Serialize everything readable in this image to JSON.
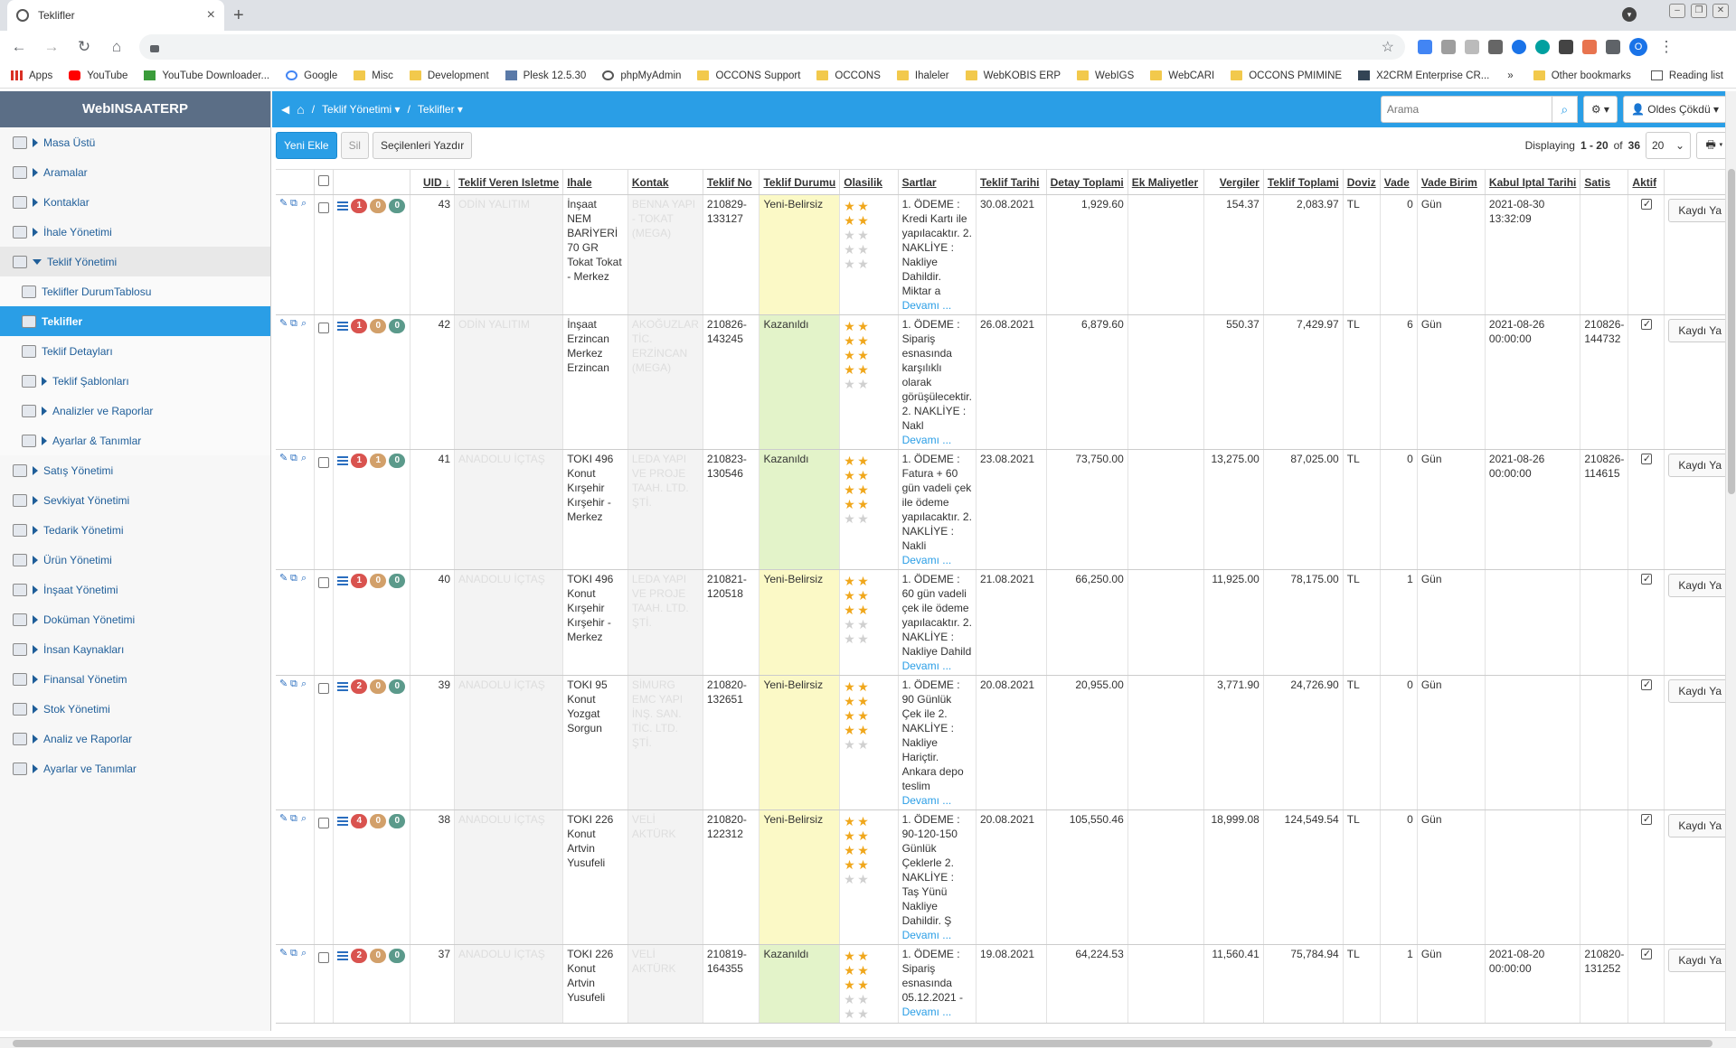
{
  "browser": {
    "tab_title": "Teklifler",
    "bookmarks": [
      "Apps",
      "YouTube",
      "YouTube Downloader...",
      "Google",
      "Misc",
      "Development",
      "Plesk 12.5.30",
      "phpMyAdmin",
      "OCCONS Support",
      "OCCONS",
      "Ihaleler",
      "WebKOBIS ERP",
      "WebIGS",
      "WebCARI",
      "OCCONS PMIMINE",
      "X2CRM Enterprise CR..."
    ],
    "more": "»",
    "other_bookmarks": "Other bookmarks",
    "reading_list": "Reading list",
    "profile_initial": "O"
  },
  "sidebar": {
    "brand": "WebINSAATERP",
    "items": [
      {
        "label": "Masa Üstü",
        "type": "top"
      },
      {
        "label": "Aramalar",
        "type": "top"
      },
      {
        "label": "Kontaklar",
        "type": "top"
      },
      {
        "label": "İhale Yönetimi",
        "type": "top"
      },
      {
        "label": "Teklif Yönetimi",
        "type": "open"
      },
      {
        "label": "Teklifler DurumTablosu",
        "type": "sub"
      },
      {
        "label": "Teklifler",
        "type": "active"
      },
      {
        "label": "Teklif Detayları",
        "type": "sub"
      },
      {
        "label": "Teklif Şablonları",
        "type": "sub2"
      },
      {
        "label": "Analizler ve Raporlar",
        "type": "sub2"
      },
      {
        "label": "Ayarlar & Tanımlar",
        "type": "sub2"
      },
      {
        "label": "Satış Yönetimi",
        "type": "top"
      },
      {
        "label": "Sevkiyat Yönetimi",
        "type": "top"
      },
      {
        "label": "Tedarik Yönetimi",
        "type": "top"
      },
      {
        "label": "Ürün Yönetimi",
        "type": "top"
      },
      {
        "label": "İnşaat Yönetimi",
        "type": "top"
      },
      {
        "label": "Doküman Yönetimi",
        "type": "top"
      },
      {
        "label": "İnsan Kaynakları",
        "type": "top"
      },
      {
        "label": "Finansal Yönetim",
        "type": "top"
      },
      {
        "label": "Stok Yönetimi",
        "type": "top"
      },
      {
        "label": "Analiz ve Raporlar",
        "type": "top"
      },
      {
        "label": "Ayarlar ve Tanımlar",
        "type": "top"
      }
    ]
  },
  "topbar": {
    "breadcrumb_sep": "/",
    "crumb1": "Teklif Yönetimi",
    "crumb2": "Teklifler",
    "search_placeholder": "Arama",
    "user": "Oldes Çökdü"
  },
  "actions": {
    "add": "Yeni Ekle",
    "delete": "Sil",
    "print_selected": "Seçilenleri Yazdır",
    "displaying_prefix": "Displaying",
    "range": "1 - 20",
    "of": "of",
    "total": "36",
    "page_size": "20"
  },
  "table": {
    "columns": [
      "UID",
      "Teklif Veren Isletme",
      "Ihale",
      "Kontak",
      "Teklif No",
      "Teklif Durumu",
      "Olasilik",
      "Sartlar",
      "Teklif Tarihi",
      "Detay Toplami",
      "Ek Maliyetler",
      "Vergiler",
      "Teklif Toplami",
      "Doviz",
      "Vade",
      "Vade Birim",
      "Kabul Iptal Tarihi",
      "Satis",
      "Aktif"
    ],
    "row_button": "Kaydı Ya",
    "more_link": "Devamı ...",
    "rows": [
      {
        "b1": "1",
        "b2": "0",
        "b3": "0",
        "uid": "43",
        "firma": "ODİN YALITIM",
        "ihale": "İnşaat NEM BARİYERİ 70 GR Tokat Tokat - Merkez",
        "kontak": "BENNA YAPI - TOKAT (MEGA)",
        "no": "210829-133127",
        "durum": "Yeni-Belirsiz",
        "durum_class": "yel",
        "stars": 2,
        "sartlar": "1. ÖDEME : Kredi Kartı ile yapılacaktır. 2. NAKLİYE : Nakliye Dahildir. Miktar a",
        "tarih": "30.08.2021",
        "detay": "1,929.60",
        "ek": "",
        "vergi": "154.37",
        "toplam": "2,083.97",
        "doviz": "TL",
        "vade": "0",
        "birim": "Gün",
        "kabul": "2021-08-30 13:32:09",
        "satis": "",
        "h": 112
      },
      {
        "b1": "1",
        "b2": "0",
        "b3": "0",
        "uid": "42",
        "firma": "ODİN YALITIM",
        "ihale": "İnşaat Erzincan Merkez Erzincan",
        "kontak": "AKOĞUZLAR TİC. ERZİNCAN (MEGA)",
        "no": "210826-143245",
        "durum": "Kazanıldı",
        "durum_class": "grn",
        "stars": 4,
        "sartlar": "1. ÖDEME : Sipariş esnasında karşılıklı olarak görüşülecektir. 2. NAKLİYE : Nakl",
        "tarih": "26.08.2021",
        "detay": "6,879.60",
        "ek": "",
        "vergi": "550.37",
        "toplam": "7,429.97",
        "doviz": "TL",
        "vade": "6",
        "birim": "Gün",
        "kabul": "2021-08-26 00:00:00",
        "satis": "210826-144732",
        "h": 125
      },
      {
        "b1": "1",
        "b2": "1",
        "b3": "0",
        "uid": "41",
        "firma": "ANADOLU İÇTAŞ",
        "ihale": "TOKI 496 Konut Kırşehir Kırşehir - Merkez",
        "kontak": "LEDA YAPI VE PROJE TAAH. LTD. ŞTİ.",
        "no": "210823-130546",
        "durum": "Kazanıldı",
        "durum_class": "grn",
        "stars": 4,
        "sartlar": "1. ÖDEME : Fatura + 60 gün vadeli çek ile ödeme yapılacaktır. 2. NAKLİYE : Nakli",
        "tarih": "23.08.2021",
        "detay": "73,750.00",
        "ek": "",
        "vergi": "13,275.00",
        "toplam": "87,025.00",
        "doviz": "TL",
        "vade": "0",
        "birim": "Gün",
        "kabul": "2021-08-26 00:00:00",
        "satis": "210826-114615",
        "h": 112
      },
      {
        "b1": "1",
        "b2": "0",
        "b3": "0",
        "uid": "40",
        "firma": "ANADOLU İÇTAŞ",
        "ihale": "TOKI 496 Konut Kırşehir Kırşehir - Merkez",
        "kontak": "LEDA YAPI VE PROJE TAAH. LTD. ŞTİ.",
        "no": "210821-120518",
        "durum": "Yeni-Belirsiz",
        "durum_class": "yel",
        "stars": 3,
        "sartlar": "1. ÖDEME : 60 gün vadeli çek ile ödeme yapılacaktır. 2. NAKLİYE : Nakliye Dahild",
        "tarih": "21.08.2021",
        "detay": "66,250.00",
        "ek": "",
        "vergi": "11,925.00",
        "toplam": "78,175.00",
        "doviz": "TL",
        "vade": "1",
        "birim": "Gün",
        "kabul": "",
        "satis": "",
        "h": 99
      },
      {
        "b1": "2",
        "b2": "0",
        "b3": "0",
        "uid": "39",
        "firma": "ANADOLU İÇTAŞ",
        "ihale": "TOKI 95 Konut Yozgat Sorgun",
        "kontak": "SİMURG EMC YAPI İNŞ. SAN. TİC. LTD. ŞTİ.",
        "no": "210820-132651",
        "durum": "Yeni-Belirsiz",
        "durum_class": "yel",
        "stars": 4,
        "sartlar": "1. ÖDEME : 90 Günlük Çek ile 2. NAKLİYE : Nakliye Hariçtir. Ankara depo teslim",
        "tarih": "20.08.2021",
        "detay": "20,955.00",
        "ek": "",
        "vergi": "3,771.90",
        "toplam": "24,726.90",
        "doviz": "TL",
        "vade": "0",
        "birim": "Gün",
        "kabul": "",
        "satis": "",
        "h": 125
      },
      {
        "b1": "4",
        "b2": "0",
        "b3": "0",
        "uid": "38",
        "firma": "ANADOLU İÇTAŞ",
        "ihale": "TOKI 226 Konut Artvin Yusufeli",
        "kontak": "VELİ AKTÜRK",
        "no": "210820-122312",
        "durum": "Yeni-Belirsiz",
        "durum_class": "yel",
        "stars": 4,
        "sartlar": "1. ÖDEME : 90-120-150 Günlük Çeklerle 2. NAKLİYE : Taş Yünü Nakliye Dahildir. Ş",
        "tarih": "20.08.2021",
        "detay": "105,550.46",
        "ek": "",
        "vergi": "18,999.08",
        "toplam": "124,549.54",
        "doviz": "TL",
        "vade": "0",
        "birim": "Gün",
        "kabul": "",
        "satis": "",
        "h": 125
      },
      {
        "b1": "2",
        "b2": "0",
        "b3": "0",
        "uid": "37",
        "firma": "ANADOLU İÇTAŞ",
        "ihale": "TOKI 226 Konut Artvin Yusufeli",
        "kontak": "VELİ AKTÜRK",
        "no": "210819-164355",
        "durum": "Kazanıldı",
        "durum_class": "grn",
        "stars": 3,
        "sartlar": "1. ÖDEME : Sipariş esnasında 05.12.2021 -",
        "tarih": "19.08.2021",
        "detay": "64,224.53",
        "ek": "",
        "vergi": "11,560.41",
        "toplam": "75,784.94",
        "doviz": "TL",
        "vade": "1",
        "birim": "Gün",
        "kabul": "2021-08-20 00:00:00",
        "satis": "210820-131252",
        "h": 80
      }
    ]
  }
}
